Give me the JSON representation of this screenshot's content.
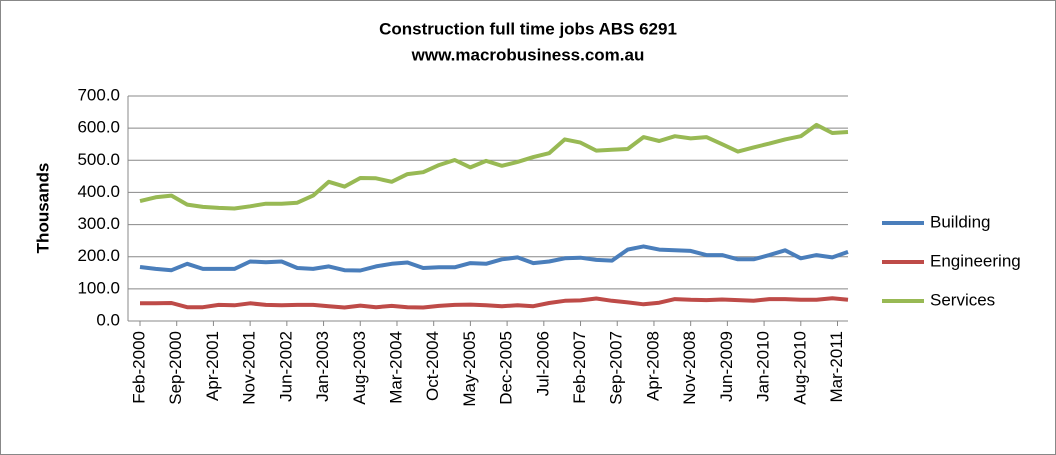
{
  "chart_data": {
    "type": "line",
    "title": "Construction full time jobs ABS 6291",
    "subtitle": "www.macrobusiness.com.au",
    "y_label": "Thousands",
    "x": [
      "Feb-2000",
      "May-2000",
      "Aug-2000",
      "Nov-2000",
      "Feb-2001",
      "May-2001",
      "Aug-2001",
      "Nov-2001",
      "Feb-2002",
      "May-2002",
      "Aug-2002",
      "Nov-2002",
      "Feb-2003",
      "May-2003",
      "Aug-2003",
      "Nov-2003",
      "Feb-2004",
      "May-2004",
      "Aug-2004",
      "Nov-2004",
      "Feb-2005",
      "May-2005",
      "Aug-2005",
      "Nov-2005",
      "Feb-2006",
      "May-2006",
      "Aug-2006",
      "Nov-2006",
      "Feb-2007",
      "May-2007",
      "Aug-2007",
      "Nov-2007",
      "Feb-2008",
      "May-2008",
      "Aug-2008",
      "Nov-2008",
      "Feb-2009",
      "May-2009",
      "Aug-2009",
      "Nov-2009",
      "Feb-2010",
      "May-2010",
      "Aug-2010",
      "Nov-2010",
      "Feb-2011",
      "May-2011"
    ],
    "xticks": [
      "Feb-2000",
      "Sep-2000",
      "Apr-2001",
      "Nov-2001",
      "Jun-2002",
      "Jan-2003",
      "Aug-2003",
      "Mar-2004",
      "Oct-2004",
      "May-2005",
      "Dec-2005",
      "Jul-2006",
      "Feb-2007",
      "Sep-2007",
      "Apr-2008",
      "Nov-2008",
      "Jun-2009",
      "Jan-2010",
      "Aug-2010",
      "Mar-2011"
    ],
    "series": [
      {
        "name": "Building",
        "color": "#4a7ebb",
        "values": [
          168,
          162,
          158,
          178,
          162,
          162,
          162,
          185,
          183,
          185,
          165,
          162,
          170,
          158,
          157,
          170,
          178,
          182,
          165,
          167,
          167,
          180,
          178,
          192,
          198,
          180,
          185,
          195,
          197,
          190,
          188,
          222,
          232,
          222,
          220,
          218,
          205,
          205,
          192,
          192,
          205,
          220,
          195,
          205,
          198,
          215
        ]
      },
      {
        "name": "Engineering",
        "color": "#be4b48",
        "values": [
          55,
          55,
          56,
          43,
          43,
          50,
          49,
          55,
          50,
          49,
          50,
          50,
          46,
          42,
          48,
          43,
          47,
          43,
          42,
          47,
          50,
          51,
          49,
          46,
          49,
          46,
          56,
          63,
          64,
          70,
          63,
          58,
          52,
          57,
          68,
          66,
          65,
          67,
          65,
          63,
          68,
          68,
          66,
          66,
          71,
          66
        ]
      },
      {
        "name": "Services",
        "color": "#98b954",
        "values": [
          373,
          385,
          390,
          362,
          355,
          352,
          350,
          357,
          365,
          365,
          368,
          390,
          433,
          418,
          445,
          444,
          433,
          457,
          463,
          485,
          501,
          478,
          498,
          483,
          495,
          510,
          522,
          565,
          555,
          530,
          533,
          535,
          572,
          560,
          575,
          568,
          572,
          550,
          527,
          540,
          552,
          565,
          575,
          610,
          585,
          588
        ]
      }
    ],
    "ylim": [
      0,
      700
    ],
    "yticks": [
      {
        "value": 0,
        "label": "0.0"
      },
      {
        "value": 100,
        "label": "100.0"
      },
      {
        "value": 200,
        "label": "200.0"
      },
      {
        "value": 300,
        "label": "300.0"
      },
      {
        "value": 400,
        "label": "400.0"
      },
      {
        "value": 500,
        "label": "500.0"
      },
      {
        "value": 600,
        "label": "600.0"
      },
      {
        "value": 700,
        "label": "700.0"
      }
    ],
    "grid": true,
    "legend": "right"
  }
}
